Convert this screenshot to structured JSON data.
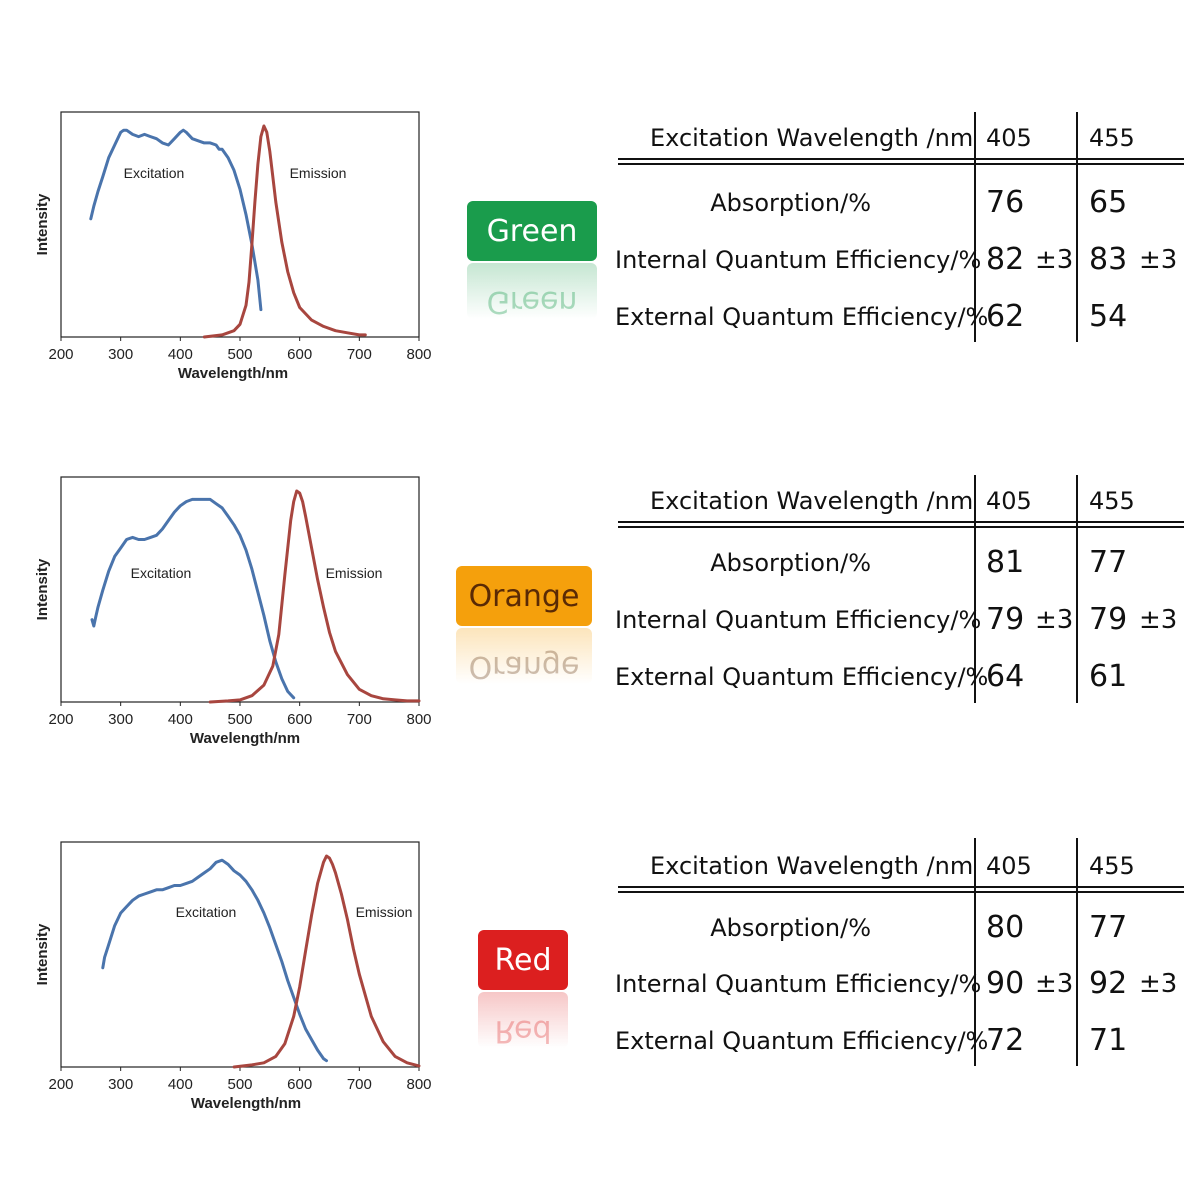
{
  "colors": {
    "excitation": "#4a74ac",
    "emission": "#a8463f",
    "green_badge": "#1a9c4c",
    "orange_badge": "#f5a00c",
    "red_badge": "#dc1f1f"
  },
  "table_headers": {
    "excitation_wavelength": "Excitation Wavelength /nm",
    "col1": "405",
    "col2": "455"
  },
  "table_row_labels": {
    "absorption": "Absorption/%",
    "iqe": "Internal Quantum Efficiency/%",
    "eqe": "External Quantum Efficiency/%"
  },
  "uncertainty": "±3",
  "panels": [
    {
      "badge": "Green",
      "table": {
        "absorption": [
          "76",
          "65"
        ],
        "iqe": [
          "82",
          "83"
        ],
        "eqe": [
          "62",
          "54"
        ]
      }
    },
    {
      "badge": "Orange",
      "table": {
        "absorption": [
          "81",
          "77"
        ],
        "iqe": [
          "79",
          "79"
        ],
        "eqe": [
          "64",
          "61"
        ]
      }
    },
    {
      "badge": "Red",
      "table": {
        "absorption": [
          "80",
          "77"
        ],
        "iqe": [
          "90",
          "92"
        ],
        "eqe": [
          "72",
          "71"
        ]
      }
    }
  ],
  "chart_data": [
    {
      "type": "line",
      "xlabel": "Wavelength/nm",
      "ylabel": "Intensity",
      "xlim": [
        200,
        800
      ],
      "xticks": [
        200,
        300,
        400,
        500,
        600,
        700,
        800
      ],
      "ylim": [
        0,
        1
      ],
      "grid": false,
      "series": [
        {
          "name": "Excitation",
          "x": [
            250,
            255,
            262,
            270,
            280,
            290,
            300,
            305,
            310,
            320,
            330,
            340,
            350,
            360,
            370,
            380,
            390,
            400,
            405,
            410,
            420,
            430,
            440,
            450,
            460,
            465,
            470,
            480,
            490,
            500,
            510,
            520,
            530,
            535
          ],
          "y": [
            0.56,
            0.62,
            0.69,
            0.76,
            0.85,
            0.91,
            0.97,
            0.98,
            0.98,
            0.96,
            0.95,
            0.96,
            0.95,
            0.94,
            0.92,
            0.91,
            0.94,
            0.97,
            0.98,
            0.97,
            0.94,
            0.93,
            0.92,
            0.92,
            0.91,
            0.89,
            0.89,
            0.85,
            0.79,
            0.7,
            0.58,
            0.44,
            0.27,
            0.13
          ]
        },
        {
          "name": "Emission",
          "x": [
            440,
            470,
            490,
            500,
            510,
            515,
            520,
            525,
            530,
            535,
            540,
            545,
            550,
            555,
            560,
            570,
            580,
            590,
            600,
            620,
            640,
            660,
            680,
            700,
            710
          ],
          "y": [
            0.0,
            0.01,
            0.03,
            0.06,
            0.15,
            0.26,
            0.44,
            0.64,
            0.82,
            0.95,
            1.0,
            0.97,
            0.88,
            0.76,
            0.64,
            0.45,
            0.31,
            0.21,
            0.14,
            0.08,
            0.05,
            0.03,
            0.02,
            0.01,
            0.01
          ]
        }
      ]
    },
    {
      "type": "line",
      "xlabel": "Wavelength/nm",
      "ylabel": "Intensity",
      "xlim": [
        200,
        800
      ],
      "xticks": [
        200,
        300,
        400,
        500,
        600,
        700,
        800
      ],
      "ylim": [
        0,
        1
      ],
      "grid": false,
      "series": [
        {
          "name": "Excitation",
          "x": [
            252,
            255,
            258,
            262,
            270,
            280,
            290,
            300,
            310,
            320,
            330,
            340,
            350,
            360,
            370,
            380,
            390,
            400,
            410,
            420,
            430,
            440,
            450,
            460,
            470,
            480,
            490,
            500,
            510,
            520,
            530,
            540,
            550,
            560,
            570,
            580,
            590
          ],
          "y": [
            0.39,
            0.36,
            0.4,
            0.45,
            0.53,
            0.62,
            0.69,
            0.73,
            0.77,
            0.78,
            0.77,
            0.77,
            0.78,
            0.79,
            0.82,
            0.86,
            0.9,
            0.93,
            0.95,
            0.96,
            0.96,
            0.96,
            0.96,
            0.94,
            0.92,
            0.88,
            0.84,
            0.79,
            0.72,
            0.63,
            0.52,
            0.41,
            0.29,
            0.19,
            0.11,
            0.05,
            0.02
          ]
        },
        {
          "name": "Emission",
          "x": [
            450,
            480,
            500,
            520,
            540,
            555,
            565,
            575,
            585,
            590,
            595,
            600,
            605,
            610,
            620,
            630,
            640,
            650,
            660,
            680,
            700,
            720,
            740,
            760,
            780,
            800
          ],
          "y": [
            0.0,
            0.005,
            0.01,
            0.03,
            0.08,
            0.17,
            0.32,
            0.6,
            0.86,
            0.95,
            1.0,
            0.99,
            0.95,
            0.88,
            0.73,
            0.58,
            0.45,
            0.33,
            0.24,
            0.13,
            0.06,
            0.03,
            0.015,
            0.01,
            0.005,
            0.005
          ]
        }
      ]
    },
    {
      "type": "line",
      "xlabel": "Wavelength/nm",
      "ylabel": "Intensity",
      "xlim": [
        200,
        800
      ],
      "xticks": [
        200,
        300,
        400,
        500,
        600,
        700,
        800
      ],
      "ylim": [
        0,
        1
      ],
      "grid": false,
      "series": [
        {
          "name": "Excitation",
          "x": [
            270,
            273,
            280,
            290,
            300,
            310,
            320,
            330,
            340,
            350,
            360,
            370,
            380,
            390,
            400,
            410,
            420,
            430,
            440,
            450,
            460,
            470,
            480,
            490,
            500,
            510,
            520,
            530,
            540,
            550,
            560,
            570,
            580,
            590,
            600,
            610,
            620,
            630,
            640,
            645
          ],
          "y": [
            0.47,
            0.52,
            0.58,
            0.67,
            0.73,
            0.76,
            0.79,
            0.81,
            0.82,
            0.83,
            0.84,
            0.84,
            0.85,
            0.86,
            0.86,
            0.87,
            0.88,
            0.9,
            0.92,
            0.94,
            0.97,
            0.98,
            0.96,
            0.93,
            0.91,
            0.88,
            0.84,
            0.79,
            0.73,
            0.66,
            0.58,
            0.5,
            0.41,
            0.33,
            0.25,
            0.18,
            0.13,
            0.08,
            0.04,
            0.03
          ]
        },
        {
          "name": "Emission",
          "x": [
            490,
            520,
            540,
            560,
            575,
            590,
            600,
            610,
            620,
            630,
            640,
            645,
            650,
            655,
            660,
            670,
            680,
            690,
            700,
            720,
            740,
            760,
            780,
            800
          ],
          "y": [
            0.0,
            0.01,
            0.02,
            0.05,
            0.11,
            0.24,
            0.38,
            0.55,
            0.72,
            0.87,
            0.97,
            1.0,
            0.99,
            0.96,
            0.92,
            0.82,
            0.7,
            0.56,
            0.44,
            0.24,
            0.12,
            0.05,
            0.02,
            0.005
          ]
        }
      ]
    }
  ]
}
